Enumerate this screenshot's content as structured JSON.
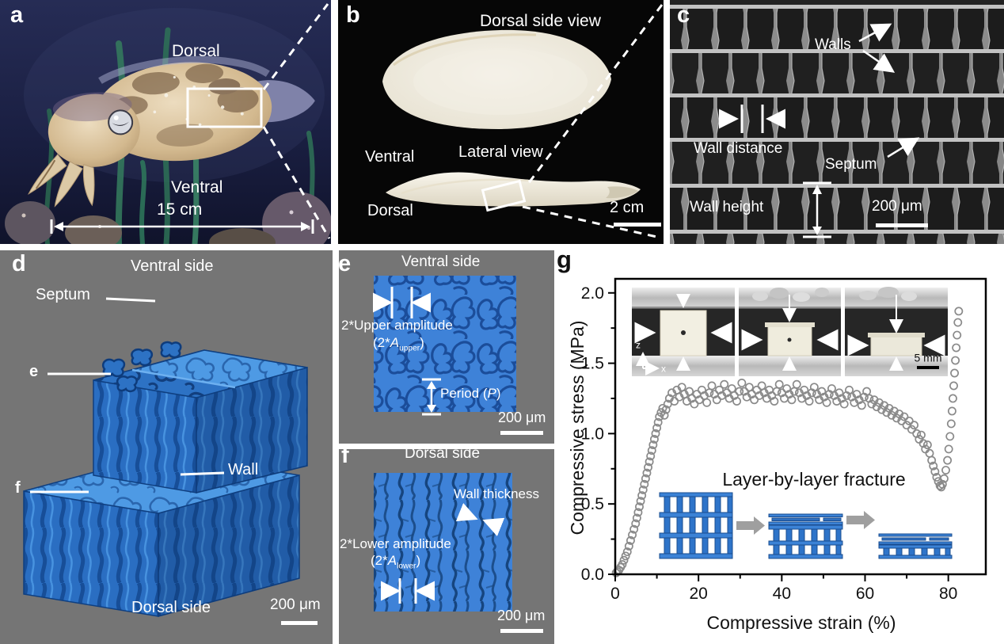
{
  "panel_a": {
    "letter": "a",
    "label_dorsal": "Dorsal",
    "label_ventral": "Ventral",
    "scale_label": "15 cm"
  },
  "panel_b": {
    "letter": "b",
    "title": "Dorsal side view",
    "label_lateral": "Lateral view",
    "label_ventral": "Ventral",
    "label_dorsal": "Dorsal",
    "scale_label": "2 cm"
  },
  "panel_c": {
    "letter": "c",
    "label_walls": "Walls",
    "label_wall_distance": "Wall distance",
    "label_septum": "Septum",
    "label_wall_height": "Wall height",
    "scale_label": "200 μm"
  },
  "panel_d": {
    "letter": "d",
    "label_top": "Ventral side",
    "label_septum": "Septum",
    "label_e_marker": "e",
    "label_wall": "Wall",
    "label_f_marker": "f",
    "label_bottom": "Dorsal side",
    "scale_label": "200 μm"
  },
  "panel_e": {
    "letter": "e",
    "title": "Ventral side",
    "amplitude_label": "2*Upper amplitude",
    "amplitude_open": "(2*",
    "amplitude_var": "A",
    "amplitude_sub": "upper",
    "amplitude_close": ")",
    "period_prefix": "Period (",
    "period_var": "P",
    "period_suffix": ")",
    "scale_label": "200 μm"
  },
  "panel_f": {
    "letter": "f",
    "title": "Dorsal side",
    "wall_thickness_label": "Wall thickness",
    "amplitude_label": "2*Lower amplitude",
    "amplitude_open": "(2*",
    "amplitude_var": "A",
    "amplitude_sub": "lower",
    "amplitude_close": ")",
    "scale_label": "200 μm"
  },
  "panel_g": {
    "letter": "g",
    "annotation": "Layer-by-layer fracture",
    "inset_scale_label": "5 mm",
    "inset_axis_z": "z",
    "inset_axis_x": "x"
  },
  "colors": {
    "structure_blue": "#3b7fd4",
    "structure_blue_dark": "#1c55a4",
    "marker_gray": "#8a8a8a",
    "panel_bg_gray": "#757575",
    "sem_bg": "#222222",
    "fracture_arrow_gray": "#9f9f9f"
  },
  "chart_data": {
    "type": "scatter",
    "title": "",
    "xlabel": "Compressive strain (%)",
    "ylabel": "Compressive stress (MPa)",
    "xlim": [
      0,
      89
    ],
    "ylim": [
      0,
      2.1
    ],
    "xticks": [
      0,
      20,
      40,
      60,
      80
    ],
    "yticks": [
      0,
      0.5,
      1.0,
      1.5,
      2.0
    ],
    "xminor": [
      10,
      30,
      50,
      70
    ],
    "yminor": [
      0.25,
      0.75,
      1.25,
      1.75
    ],
    "grid": false,
    "legend": null,
    "marker": "open-circle",
    "marker_color": "#8a8a8a",
    "annotation": "Layer-by-layer fracture",
    "points": [
      [
        0.2,
        0.01
      ],
      [
        0.5,
        0.02
      ],
      [
        0.9,
        0.03
      ],
      [
        1.3,
        0.05
      ],
      [
        1.7,
        0.07
      ],
      [
        2.1,
        0.1
      ],
      [
        2.5,
        0.13
      ],
      [
        2.9,
        0.16
      ],
      [
        3.3,
        0.2
      ],
      [
        3.7,
        0.24
      ],
      [
        4.1,
        0.28
      ],
      [
        4.5,
        0.32
      ],
      [
        4.9,
        0.36
      ],
      [
        5.2,
        0.4
      ],
      [
        5.5,
        0.44
      ],
      [
        5.8,
        0.48
      ],
      [
        6.1,
        0.52
      ],
      [
        6.4,
        0.56
      ],
      [
        6.7,
        0.6
      ],
      [
        7.0,
        0.64
      ],
      [
        7.3,
        0.68
      ],
      [
        7.6,
        0.72
      ],
      [
        7.9,
        0.76
      ],
      [
        8.2,
        0.8
      ],
      [
        8.5,
        0.84
      ],
      [
        8.8,
        0.88
      ],
      [
        9.1,
        0.92
      ],
      [
        9.4,
        0.96
      ],
      [
        9.7,
        1.0
      ],
      [
        10.0,
        1.04
      ],
      [
        10.3,
        1.08
      ],
      [
        10.6,
        1.12
      ],
      [
        11.0,
        1.15
      ],
      [
        11.4,
        1.18
      ],
      [
        11.8,
        1.13
      ],
      [
        12.2,
        1.17
      ],
      [
        12.6,
        1.21
      ],
      [
        13.0,
        1.25
      ],
      [
        13.6,
        1.29
      ],
      [
        14.2,
        1.23
      ],
      [
        14.8,
        1.31
      ],
      [
        15.4,
        1.26
      ],
      [
        16.0,
        1.33
      ],
      [
        16.6,
        1.28
      ],
      [
        17.2,
        1.23
      ],
      [
        17.8,
        1.3
      ],
      [
        18.4,
        1.25
      ],
      [
        19.0,
        1.21
      ],
      [
        19.6,
        1.28
      ],
      [
        20.2,
        1.24
      ],
      [
        20.8,
        1.31
      ],
      [
        21.4,
        1.27
      ],
      [
        22.0,
        1.22
      ],
      [
        22.6,
        1.29
      ],
      [
        23.2,
        1.34
      ],
      [
        23.8,
        1.28
      ],
      [
        24.4,
        1.24
      ],
      [
        25.0,
        1.31
      ],
      [
        25.6,
        1.27
      ],
      [
        26.2,
        1.35
      ],
      [
        26.8,
        1.29
      ],
      [
        27.4,
        1.25
      ],
      [
        28.0,
        1.32
      ],
      [
        28.6,
        1.27
      ],
      [
        29.2,
        1.23
      ],
      [
        29.8,
        1.3
      ],
      [
        30.4,
        1.36
      ],
      [
        31.0,
        1.3
      ],
      [
        31.6,
        1.26
      ],
      [
        32.2,
        1.33
      ],
      [
        32.8,
        1.28
      ],
      [
        33.4,
        1.24
      ],
      [
        34.0,
        1.31
      ],
      [
        34.6,
        1.27
      ],
      [
        35.2,
        1.34
      ],
      [
        35.8,
        1.29
      ],
      [
        36.4,
        1.25
      ],
      [
        37.0,
        1.31
      ],
      [
        37.6,
        1.27
      ],
      [
        38.2,
        1.23
      ],
      [
        38.8,
        1.3
      ],
      [
        39.4,
        1.35
      ],
      [
        40.0,
        1.29
      ],
      [
        40.6,
        1.25
      ],
      [
        41.2,
        1.32
      ],
      [
        41.8,
        1.28
      ],
      [
        42.4,
        1.24
      ],
      [
        43.0,
        1.3
      ],
      [
        43.6,
        1.35
      ],
      [
        44.2,
        1.29
      ],
      [
        44.8,
        1.25
      ],
      [
        45.4,
        1.31
      ],
      [
        46.0,
        1.27
      ],
      [
        46.6,
        1.23
      ],
      [
        47.2,
        1.29
      ],
      [
        47.8,
        1.33
      ],
      [
        48.4,
        1.28
      ],
      [
        49.0,
        1.24
      ],
      [
        49.6,
        1.3
      ],
      [
        50.2,
        1.26
      ],
      [
        50.8,
        1.22
      ],
      [
        51.4,
        1.28
      ],
      [
        52.0,
        1.32
      ],
      [
        52.6,
        1.27
      ],
      [
        53.2,
        1.23
      ],
      [
        53.8,
        1.29
      ],
      [
        54.4,
        1.25
      ],
      [
        55.0,
        1.21
      ],
      [
        55.6,
        1.27
      ],
      [
        56.2,
        1.31
      ],
      [
        56.8,
        1.26
      ],
      [
        57.4,
        1.22
      ],
      [
        58.0,
        1.28
      ],
      [
        58.6,
        1.24
      ],
      [
        59.2,
        1.2
      ],
      [
        59.8,
        1.26
      ],
      [
        60.4,
        1.3
      ],
      [
        61.0,
        1.25
      ],
      [
        61.6,
        1.21
      ],
      [
        62.2,
        1.24
      ],
      [
        62.8,
        1.19
      ],
      [
        63.4,
        1.22
      ],
      [
        64.0,
        1.17
      ],
      [
        64.6,
        1.2
      ],
      [
        65.2,
        1.15
      ],
      [
        65.8,
        1.18
      ],
      [
        66.4,
        1.13
      ],
      [
        67.0,
        1.16
      ],
      [
        67.6,
        1.11
      ],
      [
        68.2,
        1.14
      ],
      [
        68.8,
        1.09
      ],
      [
        69.4,
        1.12
      ],
      [
        70.0,
        1.06
      ],
      [
        70.6,
        1.09
      ],
      [
        71.2,
        1.03
      ],
      [
        71.8,
        1.06
      ],
      [
        72.4,
        1.0
      ],
      [
        73.0,
        0.96
      ],
      [
        73.5,
        0.99
      ],
      [
        74.0,
        0.93
      ],
      [
        74.5,
        0.89
      ],
      [
        75.0,
        0.92
      ],
      [
        75.5,
        0.86
      ],
      [
        76.0,
        0.81
      ],
      [
        76.4,
        0.77
      ],
      [
        76.8,
        0.73
      ],
      [
        77.2,
        0.69
      ],
      [
        77.6,
        0.66
      ],
      [
        78.0,
        0.63
      ],
      [
        78.3,
        0.62
      ],
      [
        78.6,
        0.64
      ],
      [
        79.0,
        0.68
      ],
      [
        79.4,
        0.74
      ],
      [
        79.8,
        0.81
      ],
      [
        80.1,
        0.89
      ],
      [
        80.4,
        0.98
      ],
      [
        80.7,
        1.07
      ],
      [
        80.9,
        1.16
      ],
      [
        81.1,
        1.25
      ],
      [
        81.3,
        1.34
      ],
      [
        81.5,
        1.43
      ],
      [
        81.7,
        1.52
      ],
      [
        81.9,
        1.61
      ],
      [
        82.1,
        1.7
      ],
      [
        82.3,
        1.79
      ],
      [
        82.5,
        1.87
      ]
    ]
  }
}
